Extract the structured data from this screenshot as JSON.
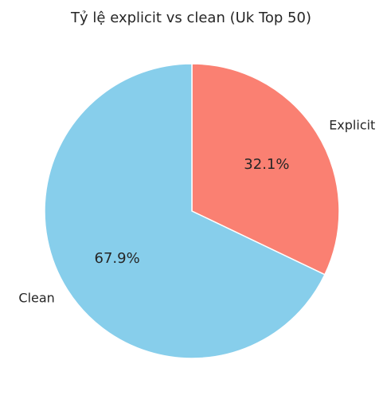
{
  "chart_data": {
    "type": "pie",
    "title": "Tỷ lệ explicit vs clean (Uk Top 50)",
    "categories": [
      "Explicit",
      "Clean"
    ],
    "values": [
      32.1,
      67.9
    ],
    "labels": [
      "32.1%",
      "67.9%"
    ],
    "colors": [
      "#fa8072",
      "#87ceeb"
    ],
    "start_angle_deg": 90,
    "direction": "clockwise"
  }
}
